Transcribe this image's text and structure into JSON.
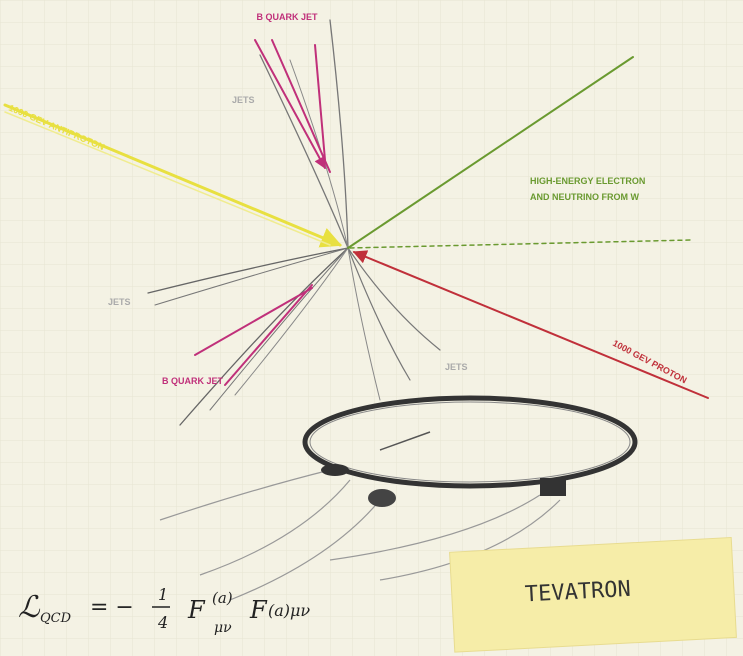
{
  "labels": {
    "b_quark_jet_top": "B QUARK JET",
    "jets_top": "JETS",
    "antiproton": "1000 GEV ANTIPROTON",
    "electron_line1": "HIGH-ENERGY ELECTRON",
    "electron_line2": "AND NEUTRINO FROM W",
    "jets_left": "JETS",
    "proton": "1000 GEV PROTON",
    "b_quark_jet_bottom": "B QUARK JET",
    "jets_right": "JETS",
    "note": "TEVATRON"
  },
  "formula": {
    "symbol": "ℒ",
    "symbol_sub": "QCD",
    "equals": "= −",
    "numerator": "1",
    "denominator": "4",
    "term1": "F",
    "term1_sup": "(a)",
    "term1_sub": "μν",
    "term2": "F",
    "term2_index": "(a)μν"
  }
}
